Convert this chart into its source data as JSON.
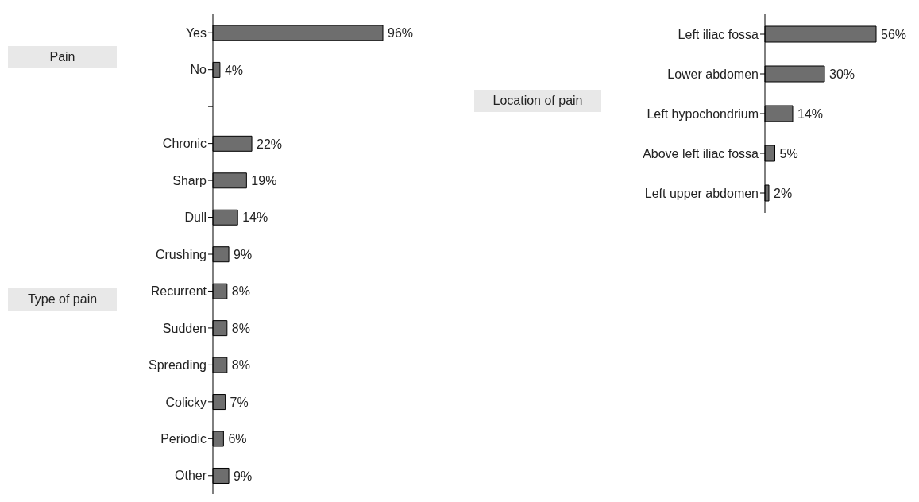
{
  "chart_data": [
    {
      "type": "bar",
      "orientation": "horizontal",
      "categories": [
        "Yes",
        "No",
        null,
        "Chronic",
        "Sharp",
        "Dull",
        "Crushing",
        "Recurrent",
        "Sudden",
        "Spreading",
        "Colicky",
        "Periodic",
        "Other"
      ],
      "values": [
        96,
        4,
        null,
        22,
        19,
        14,
        9,
        8,
        8,
        8,
        7,
        6,
        9
      ],
      "value_labels": [
        "96%",
        "4%",
        null,
        "22%",
        "19%",
        "14%",
        "9%",
        "8%",
        "8%",
        "8%",
        "7%",
        "6%",
        "9%"
      ],
      "color": "#6e6e6e",
      "grid": false,
      "legend": false,
      "annotations": [
        "Pain",
        "Type of pain"
      ]
    },
    {
      "type": "bar",
      "orientation": "horizontal",
      "categories": [
        "Left iliac fossa",
        "Lower abdomen",
        "Left hypochondrium",
        "Above left iliac fossa",
        "Left upper abdomen"
      ],
      "values": [
        56,
        30,
        14,
        5,
        2
      ],
      "value_labels": [
        "56%",
        "30%",
        "14%",
        "5%",
        "2%"
      ],
      "color": "#6e6e6e",
      "grid": false,
      "legend": false,
      "annotations": [
        "Location of pain"
      ]
    }
  ]
}
